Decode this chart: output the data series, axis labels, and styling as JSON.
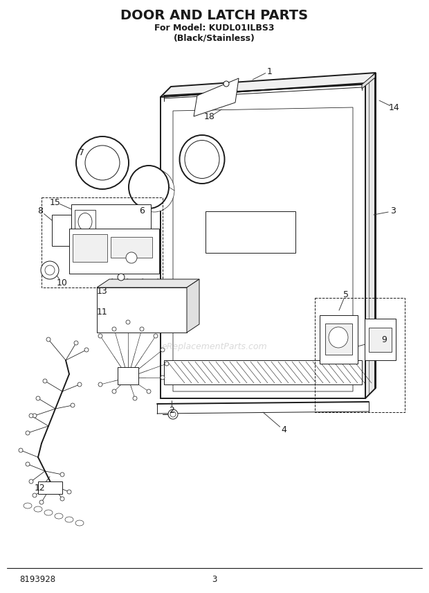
{
  "title": "DOOR AND LATCH PARTS",
  "subtitle1": "For Model: KUDL01ILBS3",
  "subtitle2": "(Black/Stainless)",
  "watermark": "eReplacementParts.com",
  "part_number": "8193928",
  "page_number": "3",
  "bg_color": "#ffffff",
  "fg_color": "#1a1a1a",
  "lw_main": 1.4,
  "lw_thin": 0.7,
  "lw_leader": 0.65
}
